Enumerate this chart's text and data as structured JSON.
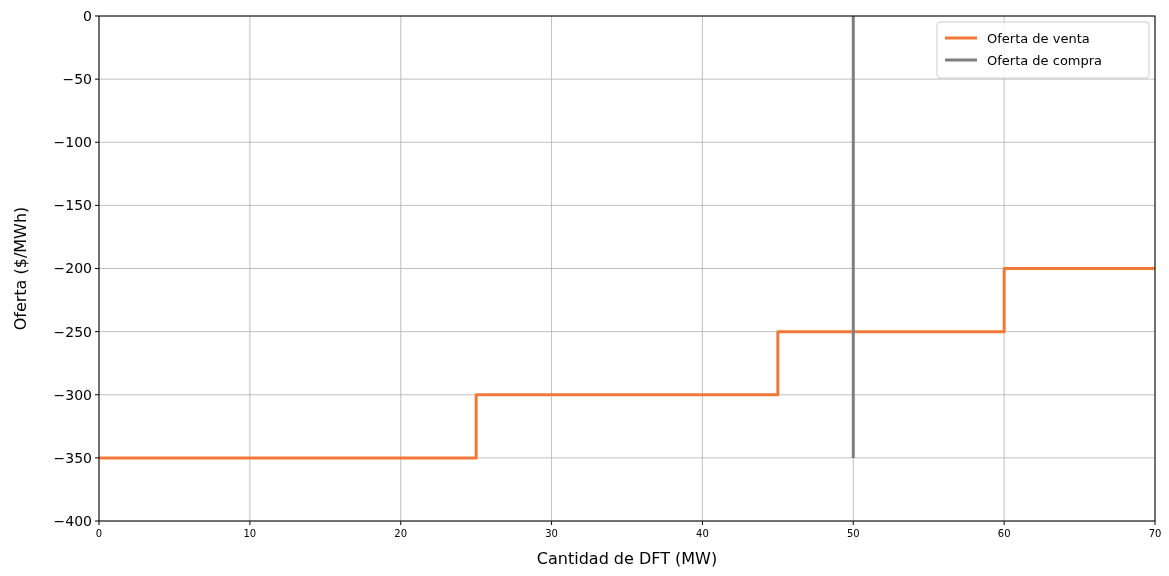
{
  "chart_data": {
    "type": "step",
    "xlabel": "Cantidad de DFT (MW)",
    "ylabel": "Oferta ($/MWh)",
    "xlim": [
      0,
      70
    ],
    "xticks": [
      0,
      10,
      20,
      30,
      40,
      50,
      60,
      70
    ],
    "ylim": [
      -400,
      0
    ],
    "yticks": [
      -400,
      -350,
      -300,
      -250,
      -200,
      -150,
      -100,
      -50,
      0
    ],
    "grid": true,
    "legend": "top right",
    "series": [
      {
        "name": "Oferta de venta",
        "color": "#f0793a",
        "x": [
          0,
          25,
          45,
          60,
          70
        ],
        "values": [
          -350,
          -300,
          -250,
          -200,
          -200
        ]
      },
      {
        "name": "Oferta de compra",
        "color": "#7f7f7f",
        "x": [
          50,
          50
        ],
        "values": [
          -350,
          0
        ]
      }
    ]
  }
}
